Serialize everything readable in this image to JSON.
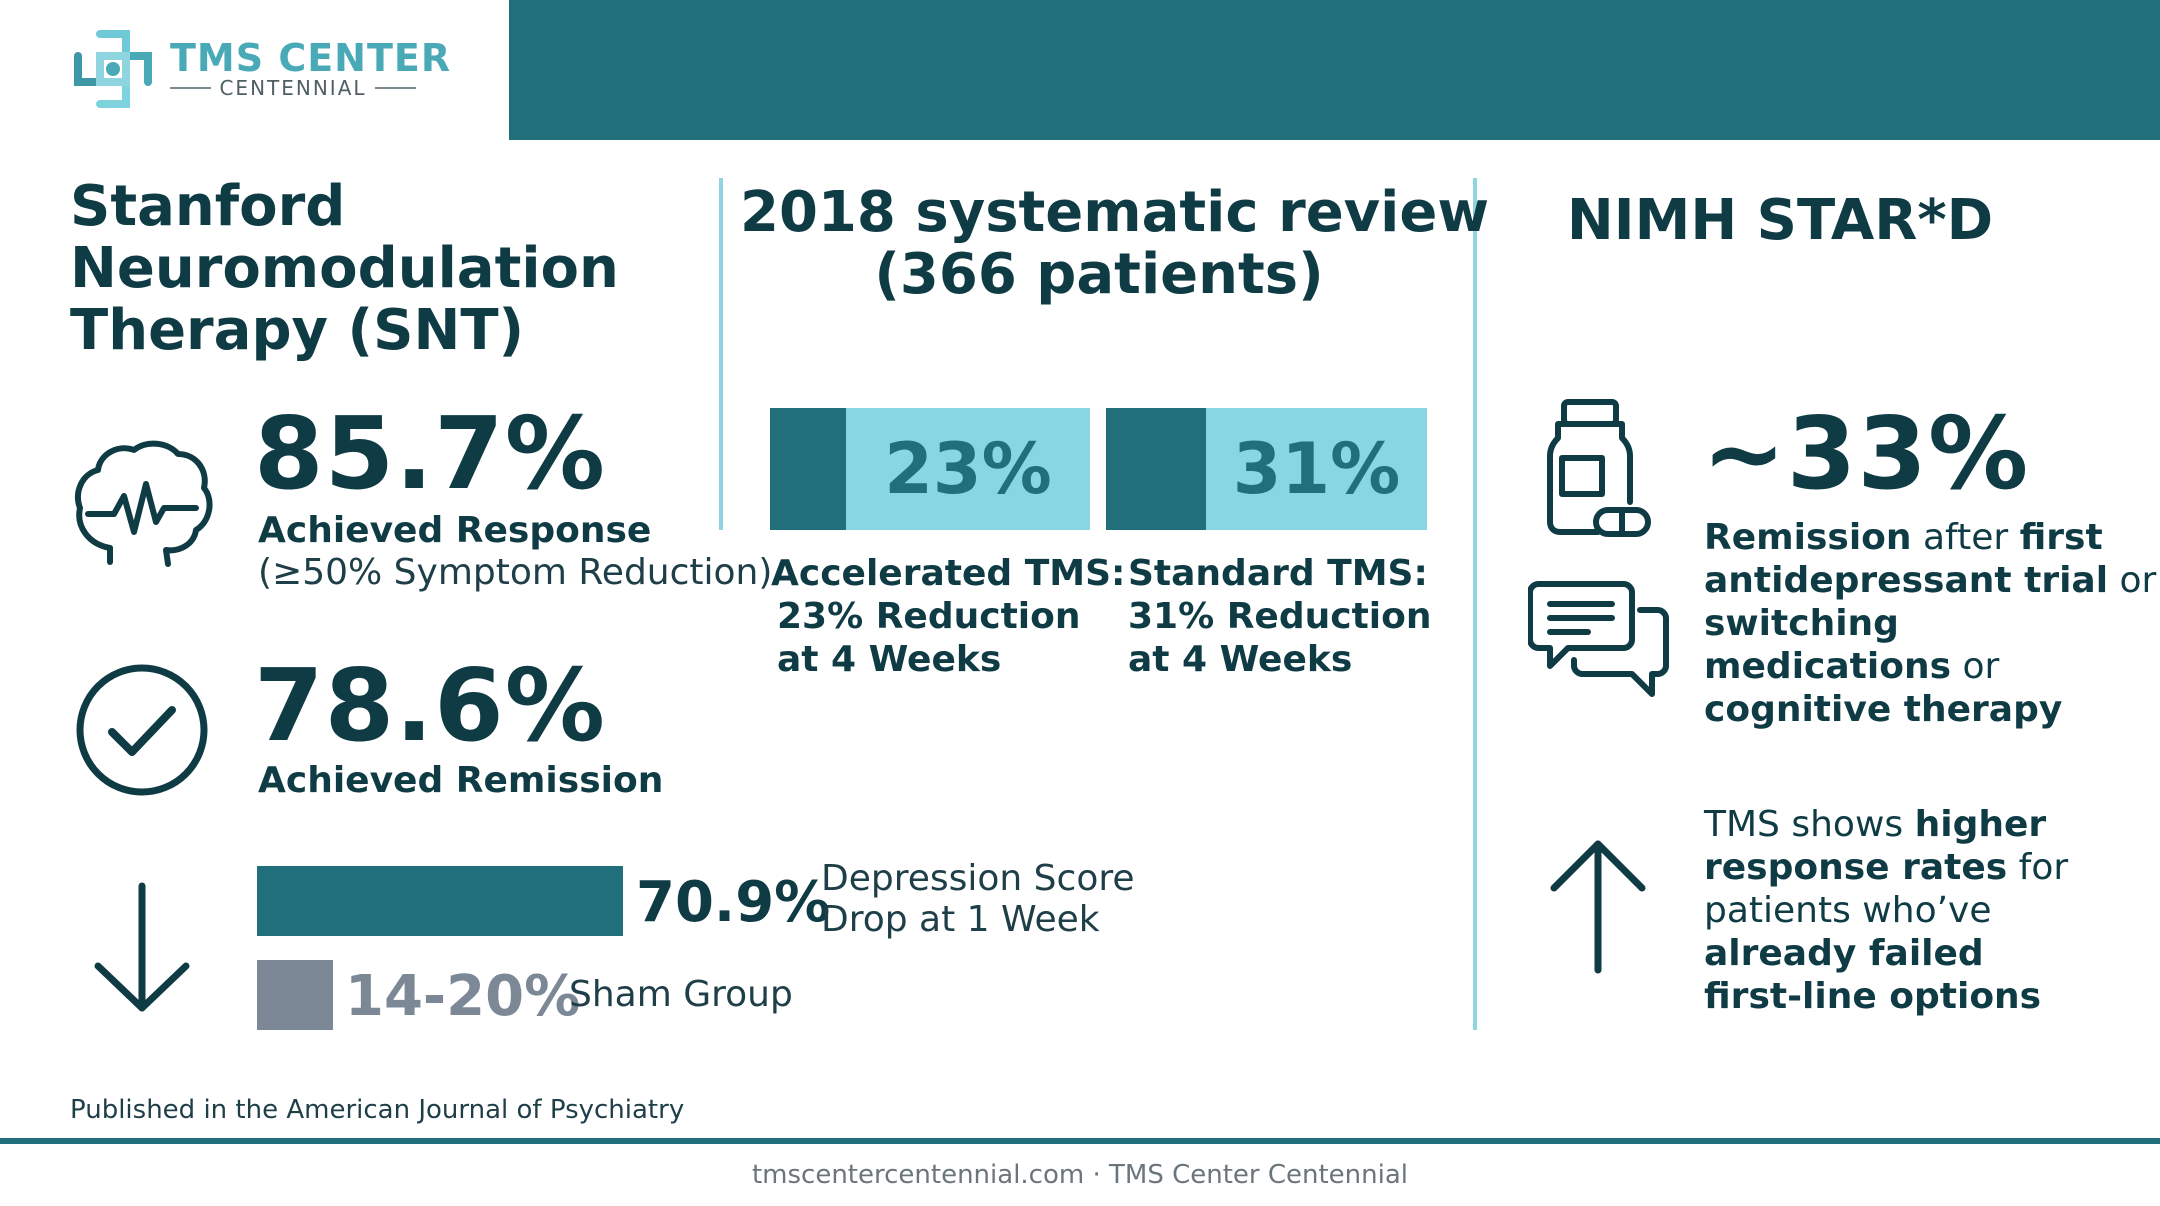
{
  "logo": {
    "title": "TMS CENTER",
    "subtitle": "CENTENNIAL"
  },
  "snt": {
    "title_lines": [
      "Stanford",
      "Neuromodulation",
      "Therapy (SNT)"
    ],
    "response_value": "85.7%",
    "response_label": "Achieved Response",
    "response_note": "(≥50% Symptom Reduction)",
    "remission_value": "78.6%",
    "remission_label": "Achieved Remission",
    "depression_value": "70.9%",
    "depression_label_lines": [
      "Depression Score",
      "Drop at 1 Week"
    ],
    "depression_fraction": 0.709,
    "sham_value": "14-20%",
    "sham_label": "Sham Group",
    "sham_fraction": 0.17,
    "source": "Published in the American Journal of Psychiatry"
  },
  "review": {
    "title_lines": [
      "2018 systematic review",
      "(366 patients)"
    ],
    "accelerated": {
      "value": "23%",
      "label_lines": [
        "Accelerated TMS:",
        "23% Reduction",
        "at 4 Weeks"
      ]
    },
    "standard": {
      "value": "31%",
      "label_lines": [
        "Standard TMS:",
        "31% Reduction",
        "at 4 Weeks"
      ]
    }
  },
  "stard": {
    "title": "NIMH STAR*D",
    "value": "~33%",
    "remission": {
      "l1_b": "Remission",
      "l1_n": " after ",
      "l1_b2": "first",
      "l2_b": "antidepressant trial",
      "l2_n": " or",
      "l3_b": "switching",
      "l4_b": "medications",
      "l4_n": " or",
      "l5_b": "cognitive therapy"
    },
    "tms": {
      "l1_n": "TMS shows ",
      "l1_b": "higher",
      "l2_b": "response rates",
      "l2_n": " for",
      "l3_n": "patients who’ve",
      "l4_b": "already failed",
      "l5_b": "first-line options"
    }
  },
  "footer": {
    "text": "tmscentercentennial.com · TMS Center Centennial"
  },
  "colors": {
    "dark_teal": "#206f7b",
    "light_teal": "#87d6e1",
    "navy": "#0f3b45",
    "gray_bar": "#7c8896"
  },
  "icons": [
    "logo-cross-icon",
    "brain-pulse-icon",
    "check-circle-icon",
    "arrow-down-icon",
    "pill-bottle-icon",
    "chat-bubbles-icon",
    "arrow-up-icon"
  ]
}
